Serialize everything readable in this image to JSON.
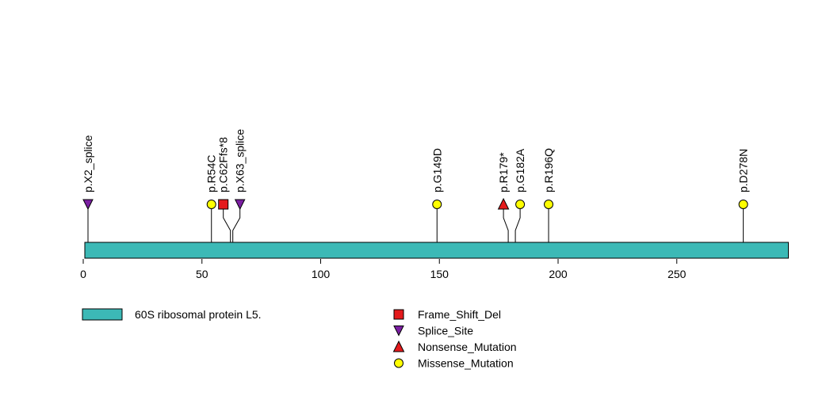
{
  "chart_data": {
    "type": "lollipop",
    "title": "",
    "xlabel": "",
    "ylabel": "",
    "xlim": [
      0,
      297
    ],
    "x_ticks": [
      0,
      50,
      100,
      150,
      200,
      250
    ],
    "domains": [
      {
        "name": "60S ribosomal protein L5.",
        "start": 1,
        "end": 297,
        "color": "#3cb9b6"
      }
    ],
    "mutation_types": [
      {
        "name": "Frame_Shift_Del",
        "shape": "square",
        "color": "#e41a1c"
      },
      {
        "name": "Splice_Site",
        "shape": "triangle-down",
        "color": "#7b1fa2"
      },
      {
        "name": "Nonsense_Mutation",
        "shape": "triangle-up",
        "color": "#e41a1c"
      },
      {
        "name": "Missense_Mutation",
        "shape": "circle",
        "color": "#ffff00"
      }
    ],
    "mutations": [
      {
        "label": "p.X2_splice",
        "position": 2,
        "type": "Splice_Site",
        "count": 1
      },
      {
        "label": "p.R54C",
        "position": 54,
        "type": "Missense_Mutation",
        "count": 1
      },
      {
        "label": "p.C62Ffs*8",
        "position": 62,
        "type": "Frame_Shift_Del",
        "count": 1
      },
      {
        "label": "p.X63_splice",
        "position": 63,
        "type": "Splice_Site",
        "count": 1
      },
      {
        "label": "p.G149D",
        "position": 149,
        "type": "Missense_Mutation",
        "count": 1
      },
      {
        "label": "p.R179*",
        "position": 179,
        "type": "Nonsense_Mutation",
        "count": 1
      },
      {
        "label": "p.G182A",
        "position": 182,
        "type": "Missense_Mutation",
        "count": 1
      },
      {
        "label": "p.R196Q",
        "position": 196,
        "type": "Missense_Mutation",
        "count": 1
      },
      {
        "label": "p.D278N",
        "position": 278,
        "type": "Missense_Mutation",
        "count": 1
      }
    ],
    "legend": {
      "domain_entries": [
        "60S ribosomal protein L5."
      ],
      "mutation_entries": [
        "Frame_Shift_Del",
        "Splice_Site",
        "Nonsense_Mutation",
        "Missense_Mutation"
      ]
    }
  }
}
